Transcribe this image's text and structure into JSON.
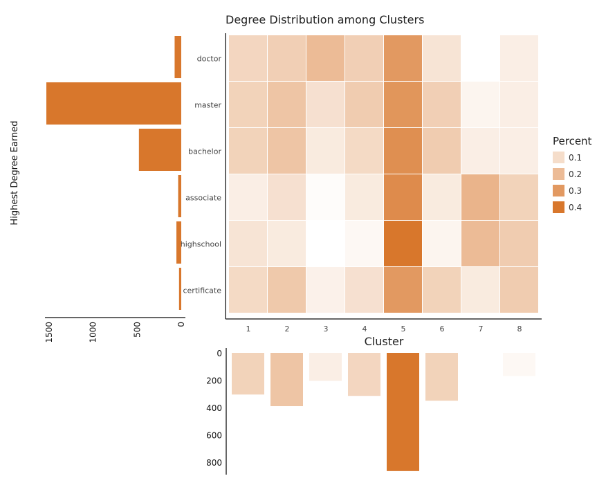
{
  "chart_data": [
    {
      "type": "heatmap",
      "title": "Degree Distribution among Clusters",
      "xlabel": "Cluster",
      "ylabel": "",
      "x": [
        "1",
        "2",
        "3",
        "4",
        "5",
        "6",
        "7",
        "8"
      ],
      "y": [
        "doctor",
        "master",
        "bachelor",
        "associate",
        "highschool",
        "certificate"
      ],
      "values": [
        [
          0.12,
          0.14,
          0.2,
          0.14,
          0.3,
          0.08,
          0.0,
          0.05
        ],
        [
          0.13,
          0.17,
          0.09,
          0.15,
          0.31,
          0.14,
          0.03,
          0.05
        ],
        [
          0.13,
          0.17,
          0.06,
          0.11,
          0.33,
          0.15,
          0.05,
          0.05
        ],
        [
          0.05,
          0.09,
          0.01,
          0.06,
          0.34,
          0.06,
          0.22,
          0.13
        ],
        [
          0.08,
          0.06,
          0.0,
          0.02,
          0.4,
          0.03,
          0.2,
          0.15
        ],
        [
          0.11,
          0.16,
          0.04,
          0.09,
          0.3,
          0.13,
          0.06,
          0.15
        ]
      ],
      "legend": {
        "title": "Percent",
        "ticks": [
          "0.1",
          "0.2",
          "0.3",
          "0.4"
        ],
        "placement": "right",
        "color_low": "#ffffff",
        "color_high": "#d8772c"
      },
      "grid": false
    },
    {
      "type": "bar",
      "orientation": "horizontal",
      "title": "",
      "xlabel": "",
      "ylabel": "Highest Degree Earned",
      "categories": [
        "doctor",
        "master",
        "bachelor",
        "associate",
        "highschool",
        "certificate"
      ],
      "values": [
        75,
        1530,
        480,
        35,
        55,
        25
      ],
      "xlim": [
        0,
        1600
      ],
      "x_ticks": [
        "1500",
        "1000",
        "500",
        "0"
      ],
      "x_reversed": true,
      "color": "#d8772c"
    },
    {
      "type": "bar",
      "title": "",
      "xlabel": "",
      "ylabel": "",
      "categories": [
        "1",
        "2",
        "3",
        "4",
        "5",
        "6",
        "7",
        "8"
      ],
      "values": [
        305,
        390,
        205,
        315,
        865,
        350,
        0,
        170
      ],
      "ylim": [
        0,
        900
      ],
      "y_ticks": [
        "0",
        "200",
        "400",
        "600",
        "800"
      ],
      "y_reversed": true,
      "note_colors": "bars tinted by cluster share"
    }
  ]
}
